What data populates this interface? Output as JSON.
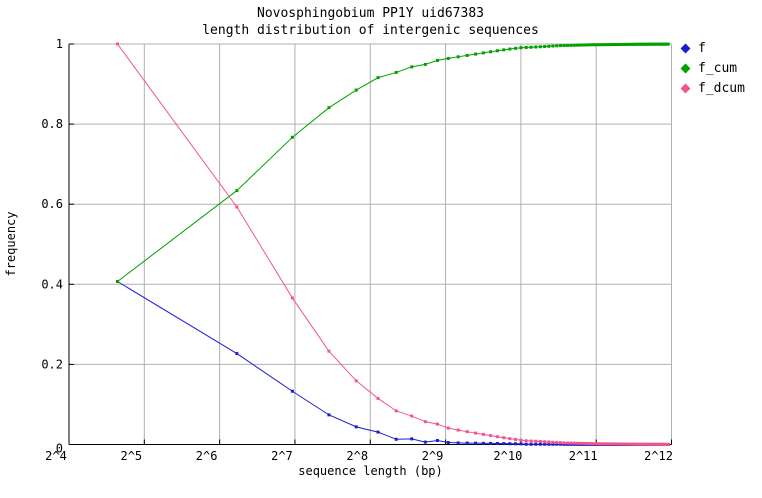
{
  "title": {
    "line1": "Novosphingobium PP1Y uid67383",
    "line2": "length distribution of intergenic sequences"
  },
  "axes": {
    "x": {
      "label": "sequence length (bp)",
      "scale": "log2",
      "tick_labels": [
        "2^4",
        "2^5",
        "2^6",
        "2^7",
        "2^8",
        "2^9",
        "2^10",
        "2^11",
        "2^12"
      ],
      "tick_exponents": [
        4,
        5,
        6,
        7,
        8,
        9,
        10,
        11,
        12
      ]
    },
    "y": {
      "label": "frequency",
      "min": 0,
      "max": 1,
      "tick_labels": [
        "0",
        "0.2",
        "0.4",
        "0.6",
        "0.8",
        "1"
      ],
      "tick_values": [
        0,
        0.2,
        0.4,
        0.6,
        0.8,
        1
      ]
    }
  },
  "legend": {
    "position": "top-right-outside",
    "entries": [
      {
        "label": "f",
        "color": "#1e1ecd"
      },
      {
        "label": "f_cum",
        "color": "#00a000"
      },
      {
        "label": "f_dcum",
        "color": "#f0558c"
      }
    ]
  },
  "colors": {
    "series_f": "#1e1ecd",
    "series_f_cum": "#00a000",
    "series_f_dcum": "#f0558c",
    "grid": "#b0b0b0",
    "axis": "#000000",
    "background": "#ffffff"
  },
  "chart_data": {
    "type": "line",
    "title": "Novosphingobium PP1Y uid67383 - length distribution of intergenic sequences",
    "xlabel": "sequence length (bp)",
    "ylabel": "frequency",
    "x_scale": "log2",
    "xlim_exponents": [
      4,
      12
    ],
    "ylim": [
      0,
      1
    ],
    "grid": true,
    "marker": "square",
    "x": [
      25,
      75,
      125,
      175,
      225,
      275,
      325,
      375,
      425,
      475,
      525,
      575,
      625,
      675,
      725,
      775,
      825,
      875,
      925,
      975,
      1025,
      1075,
      1125,
      1175,
      1225,
      1275,
      1325,
      1375,
      1425,
      1475,
      1525,
      1575,
      1625,
      1675,
      1725,
      1775,
      1825,
      1875,
      1925,
      1975,
      2025,
      2075,
      2125,
      2175,
      2225,
      2275,
      2325,
      2375,
      2425,
      2475,
      2525,
      2575,
      2625,
      2675,
      2725,
      2775,
      2825,
      2875,
      2925,
      2975,
      3025,
      3075,
      3125,
      3175,
      3225,
      3275,
      3325,
      3375,
      3425,
      3475,
      3525,
      3575,
      3625,
      3675,
      3725,
      3775,
      3825,
      3875,
      3925,
      3975
    ],
    "series": [
      {
        "name": "f",
        "color": "#1e1ecd",
        "values": [
          0.407,
          0.227,
          0.133,
          0.074,
          0.044,
          0.031,
          0.013,
          0.014,
          0.006,
          0.01,
          0.005,
          0.004,
          0.0035,
          0.0033,
          0.003,
          0.0028,
          0.0025,
          0.0023,
          0.002,
          0.0018,
          0.0015,
          0.0006,
          0.0006,
          0.0006,
          0.0006,
          0.0006,
          0.0006,
          0.0006,
          0.0006,
          0.0006,
          0.0002,
          0.0002,
          0.0002,
          0.0002,
          0.0002,
          0.0002,
          0.0002,
          0.0002,
          0.0002,
          0.0002,
          6e-05,
          6e-05,
          6e-05,
          6e-05,
          6e-05,
          6e-05,
          6e-05,
          6e-05,
          6e-05,
          6e-05,
          6e-05,
          6e-05,
          6e-05,
          6e-05,
          6e-05,
          6e-05,
          6e-05,
          6e-05,
          6e-05,
          6e-05,
          2e-05,
          2e-05,
          2e-05,
          2e-05,
          2e-05,
          2e-05,
          2e-05,
          2e-05,
          2e-05,
          2e-05,
          2e-05,
          2e-05,
          2e-05,
          2e-05,
          2e-05,
          2e-05,
          2e-05,
          2e-05,
          2e-05,
          2e-05
        ]
      },
      {
        "name": "f_cum",
        "color": "#00a000",
        "values": [
          0.407,
          0.634,
          0.767,
          0.841,
          0.885,
          0.916,
          0.929,
          0.943,
          0.949,
          0.959,
          0.964,
          0.968,
          0.9715,
          0.9748,
          0.9778,
          0.9806,
          0.9831,
          0.9854,
          0.9874,
          0.9892,
          0.9907,
          0.9913,
          0.9919,
          0.9925,
          0.9931,
          0.9937,
          0.9943,
          0.9949,
          0.9955,
          0.9961,
          0.9963,
          0.9965,
          0.9967,
          0.9969,
          0.9971,
          0.9973,
          0.9975,
          0.9977,
          0.9979,
          0.9981,
          0.99816,
          0.99822,
          0.99828,
          0.99834,
          0.9984,
          0.99846,
          0.99852,
          0.99858,
          0.99864,
          0.9987,
          0.99876,
          0.99882,
          0.99888,
          0.99894,
          0.999,
          0.99906,
          0.99912,
          0.99918,
          0.99924,
          0.9993,
          0.99932,
          0.99934,
          0.99936,
          0.99938,
          0.9994,
          0.99942,
          0.99944,
          0.99946,
          0.99948,
          0.9995,
          0.99952,
          0.99954,
          0.99956,
          0.99958,
          0.9996,
          0.99962,
          0.99964,
          0.99966,
          0.99968,
          0.9997
        ]
      },
      {
        "name": "f_dcum",
        "color": "#f0558c",
        "values": [
          1,
          0.593,
          0.366,
          0.233,
          0.159,
          0.115,
          0.084,
          0.071,
          0.057,
          0.051,
          0.041,
          0.036,
          0.032,
          0.0285,
          0.0252,
          0.0222,
          0.0194,
          0.0169,
          0.0146,
          0.0126,
          0.0108,
          0.0093,
          0.0087,
          0.0081,
          0.0075,
          0.0069,
          0.0063,
          0.0057,
          0.0051,
          0.0045,
          0.0039,
          0.0037,
          0.0035,
          0.0033,
          0.0031,
          0.0029,
          0.0027,
          0.0025,
          0.0023,
          0.0021,
          0.0019,
          0.00184,
          0.00178,
          0.00172,
          0.00166,
          0.0016,
          0.00154,
          0.00148,
          0.00142,
          0.00136,
          0.0013,
          0.00124,
          0.00118,
          0.00112,
          0.00106,
          0.001,
          0.00094,
          0.00088,
          0.00082,
          0.00076,
          0.0007,
          0.00068,
          0.00066,
          0.00064,
          0.00062,
          0.0006,
          0.00058,
          0.00056,
          0.00054,
          0.00052,
          0.0005,
          0.00048,
          0.00046,
          0.00044,
          0.00042,
          0.0004,
          0.00038,
          0.00036,
          0.00034,
          0.00032
        ]
      }
    ]
  }
}
